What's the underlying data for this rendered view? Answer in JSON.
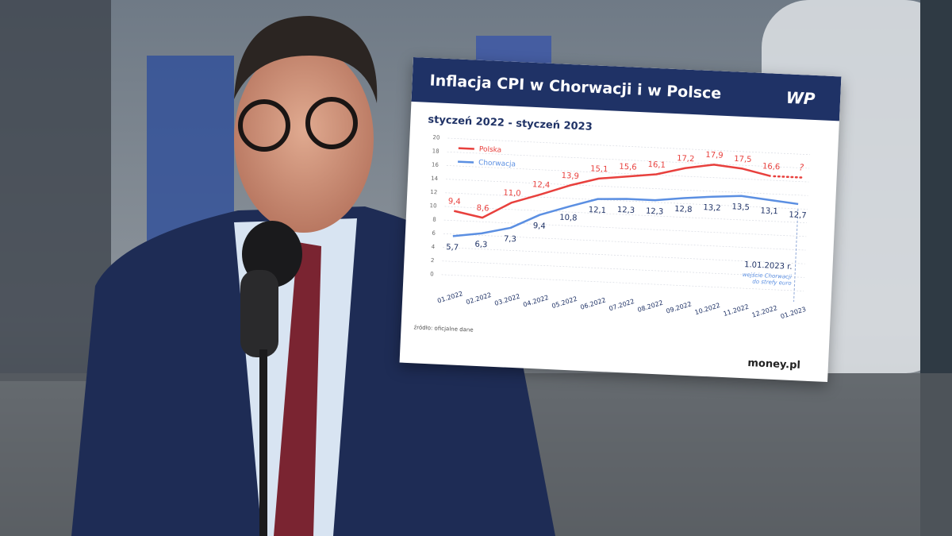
{
  "chart_data": {
    "type": "line",
    "title": "Inflacja CPI w Chorwacji i w Polsce",
    "subtitle": "styczeń 2022 - styczeń 2023",
    "categories": [
      "01.2022",
      "02.2022",
      "03.2022",
      "04.2022",
      "05.2022",
      "06.2022",
      "07.2022",
      "08.2022",
      "09.2022",
      "10.2022",
      "11.2022",
      "12.2022",
      "01.2023"
    ],
    "series": [
      {
        "name": "Polska",
        "color": "#e8403d",
        "values": [
          9.4,
          8.6,
          11.0,
          12.4,
          13.9,
          15.1,
          15.6,
          16.1,
          17.2,
          17.9,
          17.5,
          16.6,
          null
        ],
        "value_labels": [
          "9,4",
          "8,6",
          "11,0",
          "12,4",
          "13,9",
          "15,1",
          "15,6",
          "16,1",
          "17,2",
          "17,9",
          "17,5",
          "16,6",
          null
        ]
      },
      {
        "name": "Chorwacja",
        "color": "#5b8fe2",
        "values": [
          5.7,
          6.3,
          7.3,
          9.4,
          10.8,
          12.1,
          12.3,
          12.3,
          12.8,
          13.2,
          13.5,
          13.1,
          12.7
        ],
        "value_labels": [
          "5,7",
          "6,3",
          "7,3",
          "9,4",
          "10,8",
          "12,1",
          "12,3",
          "12,3",
          "12,8",
          "13,2",
          "13,5",
          "13,1",
          "12,7"
        ]
      }
    ],
    "ylim": [
      0,
      20
    ],
    "yticks": [
      0,
      2,
      4,
      6,
      8,
      10,
      12,
      14,
      16,
      18,
      20
    ],
    "grid": true,
    "annotations": [
      "?",
      "1.01.2023 r.",
      "wejście Chorwacji",
      "do strefy euro"
    ],
    "source": "źródło: oficjalne dane",
    "brand": "money.pl",
    "logo": "WP"
  }
}
